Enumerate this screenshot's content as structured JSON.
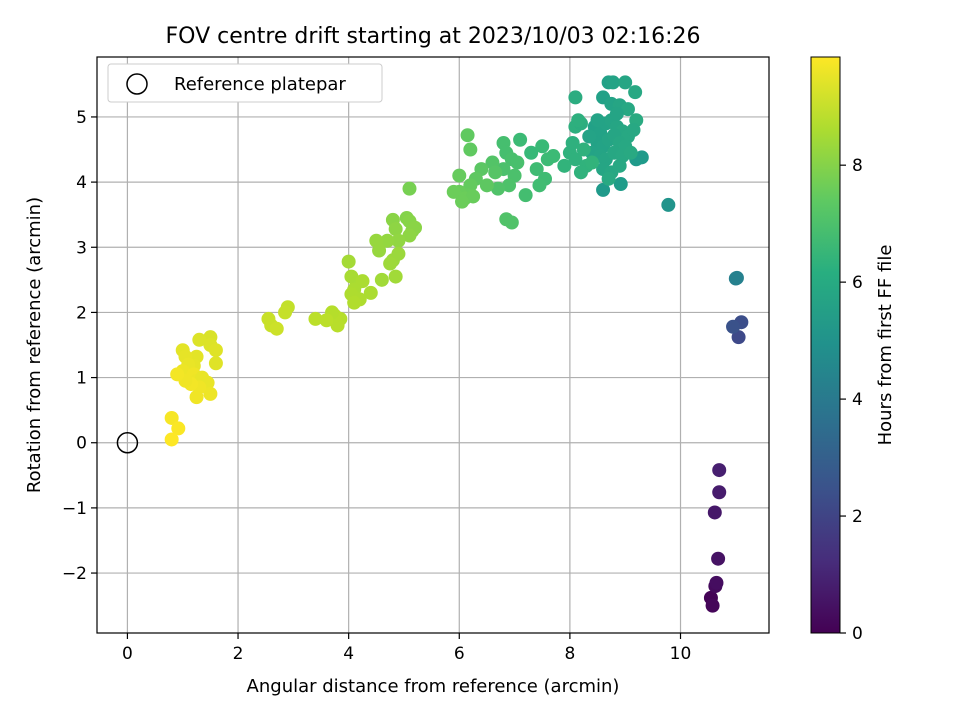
{
  "chart_data": {
    "type": "scatter",
    "title": "FOV centre drift starting at 2023/10/03 02:16:26",
    "xlabel": "Angular distance from reference (arcmin)",
    "ylabel": "Rotation from reference (arcmin)",
    "xlim": [
      -0.55,
      11.6
    ],
    "ylim": [
      -2.92,
      5.92
    ],
    "xticks": [
      0,
      2,
      4,
      6,
      8,
      10
    ],
    "yticks": [
      -2,
      -1,
      0,
      1,
      2,
      3,
      4,
      5
    ],
    "xtick_labels": [
      "0",
      "2",
      "4",
      "6",
      "8",
      "10"
    ],
    "ytick_labels": [
      "−2",
      "−1",
      "0",
      "1",
      "2",
      "3",
      "4",
      "5"
    ],
    "grid": true,
    "legend": {
      "placement": "top-left",
      "entries": [
        {
          "label": "Reference platepar",
          "marker": "open-circle"
        }
      ]
    },
    "reference_point": {
      "x": 0,
      "y": 0
    },
    "colorbar": {
      "label": "Hours from first FF file",
      "colormap": "viridis",
      "range": [
        0,
        9.85
      ],
      "ticks": [
        0,
        2,
        4,
        6,
        8
      ],
      "tick_labels": [
        "0",
        "2",
        "4",
        "6",
        "8"
      ]
    },
    "series": [
      {
        "points": [
          [
            10.55,
            -2.38,
            0.05
          ],
          [
            10.58,
            -2.5,
            0.15
          ],
          [
            10.63,
            -2.2,
            0.25
          ],
          [
            10.65,
            -2.15,
            0.35
          ],
          [
            10.68,
            -1.78,
            0.5
          ],
          [
            10.62,
            -1.07,
            0.65
          ],
          [
            10.7,
            -0.76,
            0.75
          ],
          [
            10.7,
            -0.42,
            0.85
          ],
          [
            11.05,
            1.62,
            2.2
          ],
          [
            11.1,
            1.85,
            2.35
          ],
          [
            10.95,
            1.78,
            2.5
          ],
          [
            11.0,
            2.52,
            4.3
          ],
          [
            11.02,
            2.53,
            4.35
          ],
          [
            9.78,
            3.65,
            5.1
          ],
          [
            8.6,
            3.88,
            5.3
          ],
          [
            8.92,
            3.97,
            5.4
          ],
          [
            9.2,
            4.35,
            5.3
          ],
          [
            9.3,
            4.38,
            5.35
          ],
          [
            8.7,
            5.53,
            5.6
          ],
          [
            8.78,
            5.53,
            5.7
          ],
          [
            9.0,
            5.53,
            5.8
          ],
          [
            9.18,
            5.38,
            5.9
          ],
          [
            8.6,
            5.3,
            5.6
          ],
          [
            8.75,
            5.2,
            5.7
          ],
          [
            8.9,
            5.18,
            5.8
          ],
          [
            9.05,
            5.12,
            5.9
          ],
          [
            9.2,
            4.95,
            6.0
          ],
          [
            8.45,
            4.85,
            5.6
          ],
          [
            8.55,
            4.75,
            5.65
          ],
          [
            8.65,
            4.9,
            5.7
          ],
          [
            8.75,
            4.95,
            5.75
          ],
          [
            8.85,
            4.85,
            5.8
          ],
          [
            8.95,
            4.78,
            5.85
          ],
          [
            9.05,
            4.7,
            5.9
          ],
          [
            8.5,
            4.6,
            5.65
          ],
          [
            8.6,
            4.55,
            5.7
          ],
          [
            8.7,
            4.65,
            5.75
          ],
          [
            8.8,
            4.72,
            5.8
          ],
          [
            8.9,
            4.6,
            5.85
          ],
          [
            9.0,
            4.55,
            5.9
          ],
          [
            8.4,
            4.45,
            5.7
          ],
          [
            8.55,
            4.4,
            5.75
          ],
          [
            8.65,
            4.35,
            5.8
          ],
          [
            8.8,
            4.45,
            5.85
          ],
          [
            8.95,
            4.4,
            5.9
          ],
          [
            8.6,
            4.2,
            5.8
          ],
          [
            8.75,
            4.15,
            5.85
          ],
          [
            8.9,
            4.25,
            5.9
          ],
          [
            8.7,
            4.05,
            5.95
          ],
          [
            9.1,
            4.45,
            5.95
          ],
          [
            8.5,
            4.95,
            5.7
          ],
          [
            8.35,
            4.7,
            5.7
          ],
          [
            8.85,
            5.05,
            5.75
          ],
          [
            9.15,
            4.8,
            5.9
          ],
          [
            8.1,
            5.3,
            6.1
          ],
          [
            8.1,
            4.85,
            6.2
          ],
          [
            8.2,
            4.9,
            6.15
          ],
          [
            8.15,
            4.95,
            6.2
          ],
          [
            8.0,
            4.45,
            6.3
          ],
          [
            8.1,
            4.35,
            6.3
          ],
          [
            8.3,
            4.25,
            6.35
          ],
          [
            8.2,
            4.15,
            6.35
          ],
          [
            7.9,
            4.25,
            6.4
          ],
          [
            8.05,
            4.6,
            6.25
          ],
          [
            8.25,
            4.5,
            6.3
          ],
          [
            8.4,
            4.3,
            6.4
          ],
          [
            7.3,
            4.45,
            6.6
          ],
          [
            7.5,
            4.55,
            6.65
          ],
          [
            7.6,
            4.35,
            6.7
          ],
          [
            7.7,
            4.4,
            6.7
          ],
          [
            7.55,
            4.05,
            6.75
          ],
          [
            7.45,
            3.95,
            6.8
          ],
          [
            7.2,
            3.8,
            6.85
          ],
          [
            7.4,
            4.2,
            6.75
          ],
          [
            7.1,
            4.65,
            6.7
          ],
          [
            6.8,
            4.6,
            6.9
          ],
          [
            6.85,
            4.45,
            6.9
          ],
          [
            6.95,
            4.35,
            6.95
          ],
          [
            6.8,
            4.2,
            7.0
          ],
          [
            7.0,
            4.1,
            7.0
          ],
          [
            7.05,
            4.3,
            6.95
          ],
          [
            6.9,
            3.95,
            7.05
          ],
          [
            6.7,
            3.9,
            7.1
          ],
          [
            6.85,
            3.43,
            7.1
          ],
          [
            6.95,
            3.38,
            7.1
          ],
          [
            6.6,
            4.3,
            7.15
          ],
          [
            6.65,
            4.15,
            7.2
          ],
          [
            6.4,
            4.2,
            7.3
          ],
          [
            6.3,
            4.05,
            7.35
          ],
          [
            6.5,
            3.95,
            7.35
          ],
          [
            6.2,
            3.95,
            7.45
          ],
          [
            6.15,
            3.8,
            7.5
          ],
          [
            6.0,
            4.1,
            7.5
          ],
          [
            6.0,
            3.85,
            7.55
          ],
          [
            5.9,
            3.85,
            7.6
          ],
          [
            6.1,
            3.75,
            7.6
          ],
          [
            6.25,
            3.78,
            7.55
          ],
          [
            6.2,
            4.5,
            7.4
          ],
          [
            6.15,
            4.72,
            7.4
          ],
          [
            6.05,
            3.7,
            7.6
          ],
          [
            5.1,
            3.9,
            7.8
          ],
          [
            5.05,
            3.45,
            8.0
          ],
          [
            5.1,
            3.4,
            8.05
          ],
          [
            5.15,
            3.25,
            8.1
          ],
          [
            5.2,
            3.3,
            8.1
          ],
          [
            5.1,
            3.18,
            8.15
          ],
          [
            4.8,
            3.42,
            8.1
          ],
          [
            4.85,
            3.28,
            8.15
          ],
          [
            4.9,
            3.1,
            8.2
          ],
          [
            4.7,
            3.1,
            8.25
          ],
          [
            4.5,
            3.1,
            8.3
          ],
          [
            4.55,
            2.95,
            8.3
          ],
          [
            4.8,
            2.8,
            8.35
          ],
          [
            4.9,
            2.9,
            8.35
          ],
          [
            4.75,
            2.75,
            8.4
          ],
          [
            4.6,
            2.5,
            8.45
          ],
          [
            4.85,
            2.55,
            8.45
          ],
          [
            4.0,
            2.78,
            8.5
          ],
          [
            4.05,
            2.55,
            8.55
          ],
          [
            4.15,
            2.45,
            8.55
          ],
          [
            4.25,
            2.48,
            8.6
          ],
          [
            4.1,
            2.35,
            8.6
          ],
          [
            4.05,
            2.28,
            8.65
          ],
          [
            4.2,
            2.2,
            8.65
          ],
          [
            4.1,
            2.15,
            8.7
          ],
          [
            4.4,
            2.3,
            8.6
          ],
          [
            3.85,
            1.9,
            8.75
          ],
          [
            3.8,
            1.8,
            8.8
          ],
          [
            3.75,
            1.95,
            8.8
          ],
          [
            3.7,
            2.0,
            8.75
          ],
          [
            3.4,
            1.9,
            8.85
          ],
          [
            3.6,
            1.88,
            8.85
          ],
          [
            2.9,
            2.08,
            8.95
          ],
          [
            2.85,
            2.0,
            9.0
          ],
          [
            2.55,
            1.9,
            9.05
          ],
          [
            2.6,
            1.8,
            9.05
          ],
          [
            2.7,
            1.75,
            9.1
          ],
          [
            1.5,
            1.62,
            9.3
          ],
          [
            1.3,
            1.58,
            9.35
          ],
          [
            1.5,
            1.5,
            9.35
          ],
          [
            1.6,
            1.42,
            9.4
          ],
          [
            1.25,
            1.32,
            9.45
          ],
          [
            1.0,
            1.42,
            9.45
          ],
          [
            1.05,
            1.32,
            9.5
          ],
          [
            1.2,
            1.18,
            9.5
          ],
          [
            1.1,
            1.2,
            9.55
          ],
          [
            0.95,
            1.05,
            9.55
          ],
          [
            1.0,
            1.1,
            9.6
          ],
          [
            1.1,
            1.0,
            9.6
          ],
          [
            1.2,
            1.05,
            9.65
          ],
          [
            1.25,
            0.95,
            9.6
          ],
          [
            1.35,
            1.0,
            9.55
          ],
          [
            1.45,
            0.92,
            9.55
          ],
          [
            1.5,
            0.75,
            9.6
          ],
          [
            1.25,
            0.7,
            9.65
          ],
          [
            1.3,
            0.85,
            9.65
          ],
          [
            1.15,
            0.9,
            9.7
          ],
          [
            1.05,
            0.95,
            9.65
          ],
          [
            0.9,
            1.05,
            9.7
          ],
          [
            1.6,
            1.22,
            9.4
          ],
          [
            0.8,
            0.38,
            9.75
          ],
          [
            0.92,
            0.22,
            9.8
          ],
          [
            0.8,
            0.05,
            9.85
          ]
        ]
      }
    ]
  }
}
